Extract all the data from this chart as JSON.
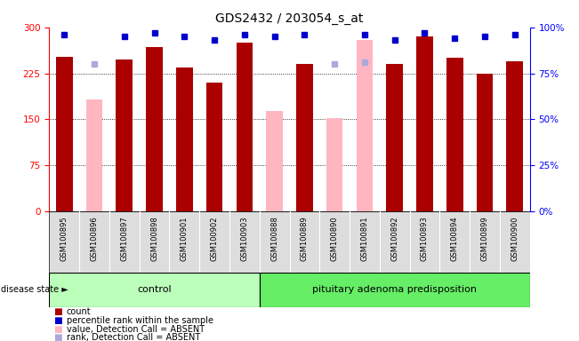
{
  "title": "GDS2432 / 203054_s_at",
  "samples": [
    "GSM100895",
    "GSM100896",
    "GSM100897",
    "GSM100898",
    "GSM100901",
    "GSM100902",
    "GSM100903",
    "GSM100888",
    "GSM100889",
    "GSM100890",
    "GSM100891",
    "GSM100892",
    "GSM100893",
    "GSM100894",
    "GSM100899",
    "GSM100900"
  ],
  "count_values": [
    252,
    0,
    248,
    268,
    235,
    210,
    275,
    0,
    240,
    0,
    0,
    240,
    285,
    250,
    225,
    245
  ],
  "absent_values": [
    0,
    183,
    0,
    0,
    0,
    0,
    0,
    163,
    0,
    152,
    280,
    0,
    0,
    0,
    0,
    0
  ],
  "rank_values": [
    96,
    0,
    95,
    97,
    95,
    93,
    96,
    95,
    96,
    0,
    96,
    93,
    97,
    94,
    95,
    96
  ],
  "absent_rank_values": [
    0,
    80,
    0,
    0,
    0,
    0,
    0,
    0,
    0,
    80,
    81,
    0,
    0,
    0,
    0,
    0
  ],
  "control_count": 7,
  "disease_count": 9,
  "control_label": "control",
  "disease_label": "pituitary adenoma predisposition",
  "disease_state_label": "disease state",
  "ylim_left": [
    0,
    300
  ],
  "ylim_right": [
    0,
    100
  ],
  "yticks_left": [
    0,
    75,
    150,
    225,
    300
  ],
  "yticks_right": [
    0,
    25,
    50,
    75,
    100
  ],
  "bar_color_red": "#AA0000",
  "bar_color_pink": "#FFB6C1",
  "marker_color_blue": "#0000CC",
  "marker_color_lightblue": "#AAAADD",
  "bg_color": "#FFFFFF",
  "sample_bg_color": "#DDDDDD",
  "control_bg": "#BBFFBB",
  "disease_bg": "#66EE66",
  "bar_width": 0.55,
  "legend_items": [
    "count",
    "percentile rank within the sample",
    "value, Detection Call = ABSENT",
    "rank, Detection Call = ABSENT"
  ]
}
